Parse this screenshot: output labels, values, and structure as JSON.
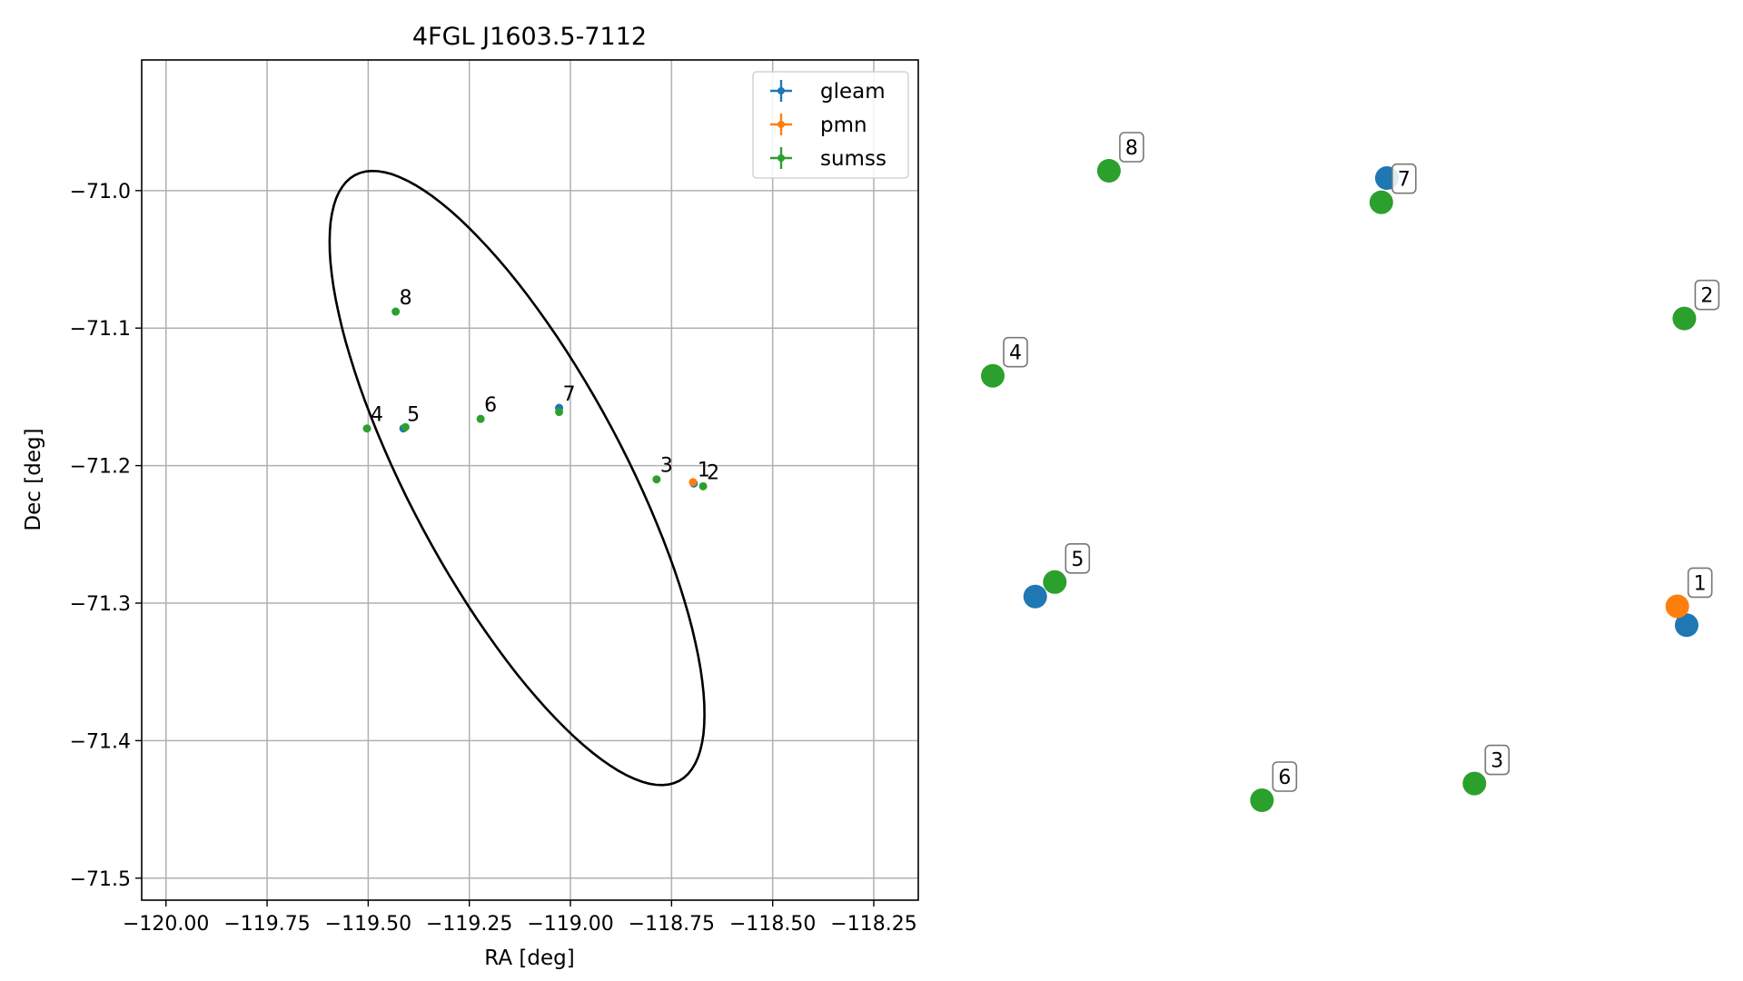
{
  "chart_data": [
    {
      "type": "scatter",
      "title": "4FGL J1603.5-7112",
      "xlabel": "RA [deg]",
      "ylabel": "Dec [deg]",
      "xlim": [
        -120.06,
        -118.14
      ],
      "ylim": [
        -71.516,
        -70.905
      ],
      "xticks": [
        -120.0,
        -119.75,
        -119.5,
        -119.25,
        -119.0,
        -118.75,
        -118.5,
        -118.25
      ],
      "xtick_labels": [
        "−120.00",
        "−119.75",
        "−119.50",
        "−119.25",
        "−119.00",
        "−118.75",
        "−118.50",
        "−118.25"
      ],
      "yticks": [
        -71.0,
        -71.1,
        -71.2,
        -71.3,
        -71.4,
        -71.5
      ],
      "ytick_labels": [
        "−71.0",
        "−71.1",
        "−71.2",
        "−71.3",
        "−71.4",
        "−71.5"
      ],
      "grid": true,
      "legend_position": "upper right",
      "ellipse": {
        "center": [
          -119.132,
          -71.209
        ],
        "semi_major_deg": 0.497,
        "semi_minor_deg": 0.133,
        "angle_deg": -22.0,
        "color": "#000000"
      },
      "series": [
        {
          "name": "gleam",
          "color": "#1f77b4",
          "points": [
            {
              "x": -118.695,
              "y": -71.213,
              "label": "1"
            },
            {
              "x": -119.413,
              "y": -71.173,
              "label": "5"
            },
            {
              "x": -119.028,
              "y": -71.158,
              "label": "7"
            }
          ]
        },
        {
          "name": "pmn",
          "color": "#ff7f0e",
          "points": [
            {
              "x": -118.697,
              "y": -71.212,
              "label": "1"
            }
          ]
        },
        {
          "name": "sumss",
          "color": "#2ca02c",
          "points": [
            {
              "x": -118.672,
              "y": -71.215,
              "label": "2"
            },
            {
              "x": -118.787,
              "y": -71.21,
              "label": "3"
            },
            {
              "x": -119.503,
              "y": -71.173,
              "label": "4"
            },
            {
              "x": -119.408,
              "y": -71.172,
              "label": "5"
            },
            {
              "x": -119.222,
              "y": -71.166,
              "label": "6"
            },
            {
              "x": -119.028,
              "y": -71.161,
              "label": "7"
            },
            {
              "x": -119.432,
              "y": -71.088,
              "label": "8"
            }
          ]
        }
      ]
    },
    {
      "type": "scatter",
      "title": "",
      "axes_visible": false,
      "labels_in_boxes": true,
      "series": [
        {
          "name": "gleam",
          "color": "#1f77b4",
          "points": [
            {
              "x": 0.9986,
              "y": 0.7219,
              "label": "1"
            },
            {
              "x": 0.0611,
              "y": 0.6764,
              "label": "5"
            },
            {
              "x": 0.5672,
              "y": 0.0116,
              "label": "7"
            }
          ]
        },
        {
          "name": "pmn",
          "color": "#ff7f0e",
          "points": [
            {
              "x": 0.9852,
              "y": 0.6919,
              "label": "1"
            }
          ]
        },
        {
          "name": "sumss",
          "color": "#2ca02c",
          "points": [
            {
              "x": 0.9953,
              "y": 0.2347,
              "label": "2"
            },
            {
              "x": 0.6932,
              "y": 0.9734,
              "label": "3"
            },
            {
              "x": 0.0,
              "y": 0.3257,
              "label": "4"
            },
            {
              "x": 0.0893,
              "y": 0.6534,
              "label": "5"
            },
            {
              "x": 0.3874,
              "y": 1.0,
              "label": "6"
            },
            {
              "x": 0.5592,
              "y": 0.0501,
              "label": "7"
            },
            {
              "x": 0.1672,
              "y": 0.0,
              "label": "8"
            }
          ]
        }
      ]
    }
  ]
}
